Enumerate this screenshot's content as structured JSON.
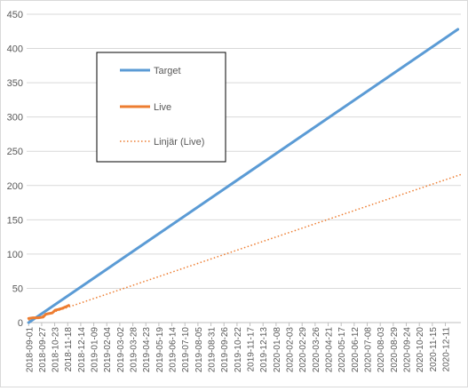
{
  "chart_data": {
    "type": "line",
    "title": "",
    "xlabel": "",
    "ylabel": "",
    "ylim": [
      0,
      450
    ],
    "y_ticks": [
      0,
      50,
      100,
      150,
      200,
      250,
      300,
      350,
      400,
      450
    ],
    "x_range": [
      "2018-08-28",
      "2021-01-11"
    ],
    "x_tick_labels": [
      "2018-09-01",
      "2018-09-27",
      "2018-10-23",
      "2018-11-18",
      "2018-12-14",
      "2019-01-09",
      "2019-02-04",
      "2019-03-02",
      "2019-03-28",
      "2019-04-23",
      "2019-05-19",
      "2019-06-14",
      "2019-07-10",
      "2019-08-05",
      "2019-08-31",
      "2019-09-26",
      "2019-10-22",
      "2019-11-17",
      "2019-12-13",
      "2020-01-08",
      "2020-02-03",
      "2020-02-29",
      "2020-03-26",
      "2020-04-21",
      "2020-05-17",
      "2020-06-12",
      "2020-07-08",
      "2020-08-03",
      "2020-08-29",
      "2020-09-24",
      "2020-10-20",
      "2020-11-15",
      "2020-12-11"
    ],
    "grid": "horizontal",
    "legend_position": "top-left-inside",
    "series": [
      {
        "name": "Target",
        "style": "solid",
        "color": "#5b9bd5",
        "x": [
          "2018-09-01",
          "2021-01-05"
        ],
        "y": [
          0,
          428
        ]
      },
      {
        "name": "Live",
        "style": "solid",
        "color": "#ed7d31",
        "x": [
          "2018-09-01",
          "2018-09-10",
          "2018-09-20",
          "2018-09-30",
          "2018-10-05",
          "2018-10-10",
          "2018-10-18",
          "2018-10-24",
          "2018-10-30",
          "2018-11-08",
          "2018-11-14",
          "2018-11-20"
        ],
        "y": [
          6,
          7,
          7,
          8,
          12,
          13,
          14,
          18,
          19,
          21,
          23,
          25
        ]
      },
      {
        "name": "Linjär (Live)",
        "style": "dotted",
        "color": "#ed7d31",
        "x": [
          "2018-09-01",
          "2021-01-11"
        ],
        "y": [
          3,
          216
        ]
      }
    ]
  }
}
